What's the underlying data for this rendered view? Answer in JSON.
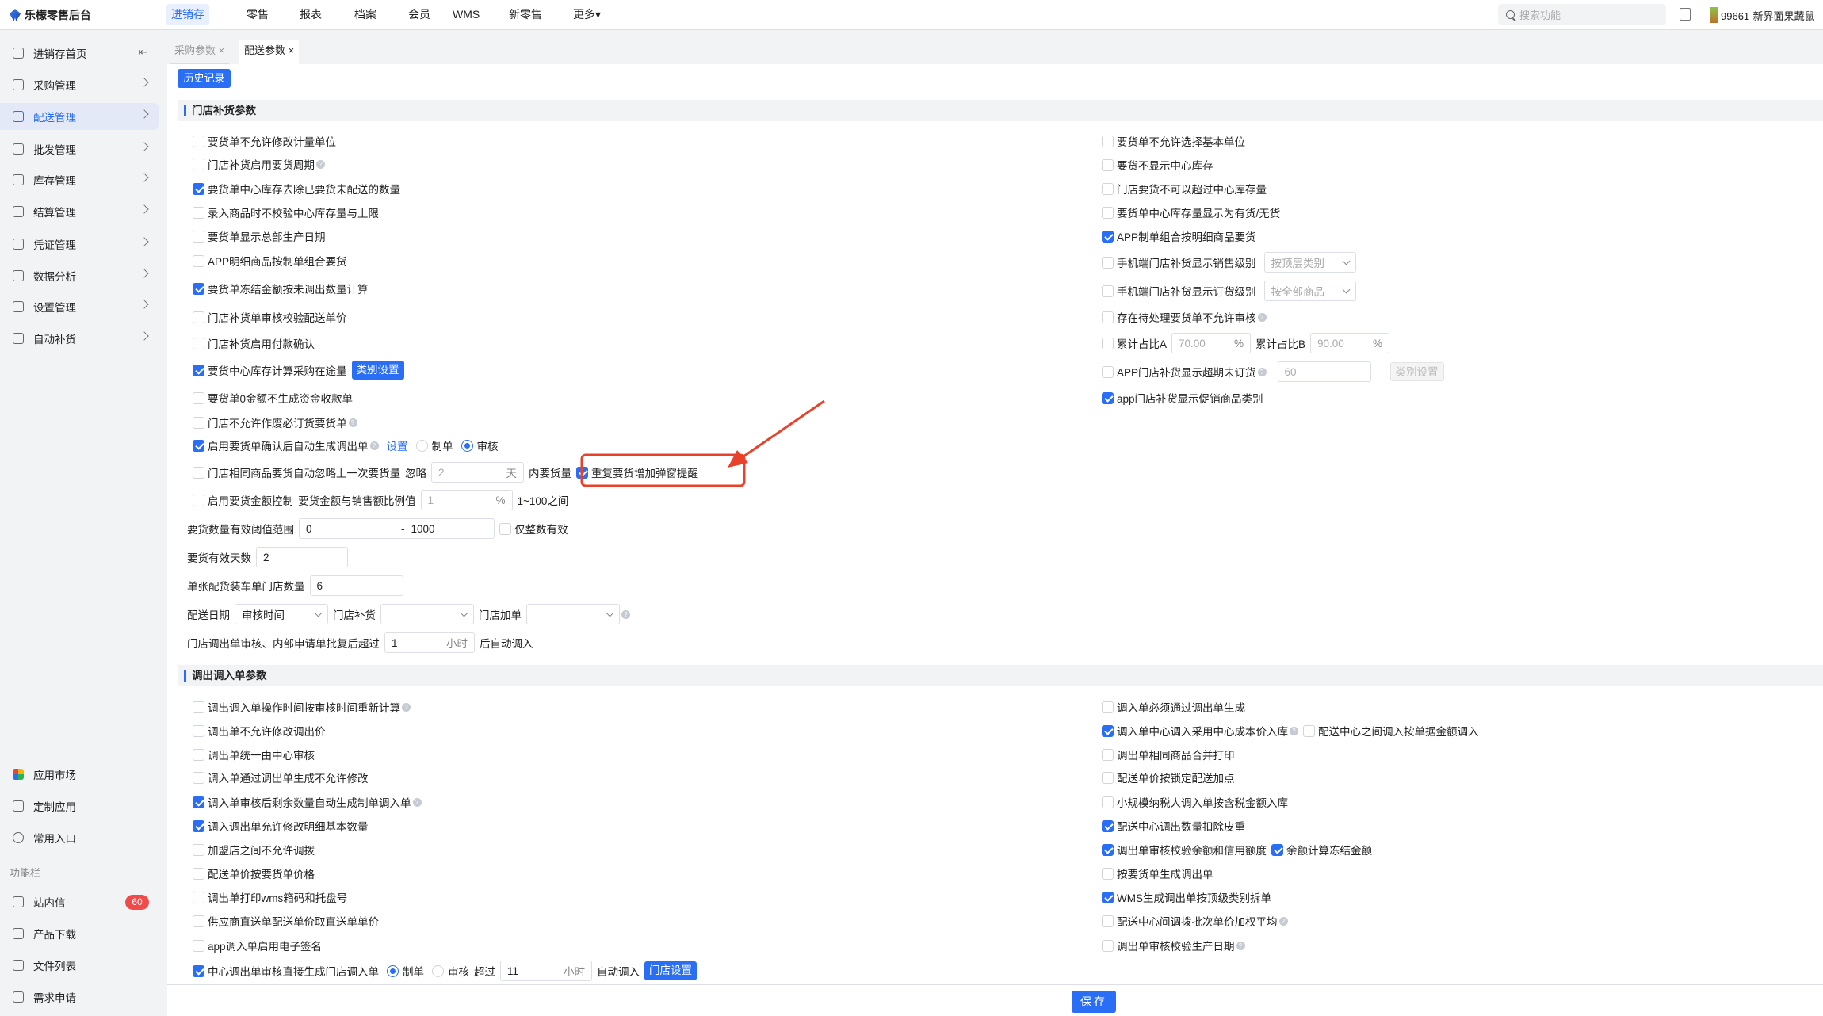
{
  "app": {
    "title": "乐檬零售后台"
  },
  "topnav": {
    "items": [
      "进销存",
      "零售",
      "报表",
      "档案",
      "会员",
      "WMS",
      "新零售",
      "更多▾"
    ],
    "search_placeholder": "搜索功能",
    "store_name": "99661-新界面果蔬鼠"
  },
  "sidebar": {
    "items": [
      {
        "label": "进销存首页",
        "icon": "home-icon"
      },
      {
        "label": "采购管理",
        "icon": "cart-icon"
      },
      {
        "label": "配送管理",
        "icon": "delivery-icon",
        "active": true
      },
      {
        "label": "批发管理",
        "icon": "wholesale-icon"
      },
      {
        "label": "库存管理",
        "icon": "inventory-icon"
      },
      {
        "label": "结算管理",
        "icon": "dollar-icon"
      },
      {
        "label": "凭证管理",
        "icon": "voucher-icon"
      },
      {
        "label": "数据分析",
        "icon": "chart-icon"
      },
      {
        "label": "设置管理",
        "icon": "settings-icon"
      },
      {
        "label": "自动补货",
        "icon": "auto-replenish-icon"
      }
    ],
    "bottom_items": [
      {
        "label": "应用市场",
        "icon": "app-market-icon"
      },
      {
        "label": "定制应用",
        "icon": "cube-icon"
      },
      {
        "label": "常用入口",
        "icon": "heart-icon"
      }
    ],
    "caption": "功能栏",
    "func_items": [
      {
        "label": "站内信",
        "icon": "mail-icon",
        "badge": "60"
      },
      {
        "label": "产品下载",
        "icon": "download-icon"
      },
      {
        "label": "文件列表",
        "icon": "file-list-icon"
      },
      {
        "label": "需求申请",
        "icon": "request-icon"
      }
    ]
  },
  "tabs": [
    {
      "label": "采购参数 ×",
      "active": false
    },
    {
      "label": "配送参数 ×",
      "active": true
    }
  ],
  "history_button": "历史记录",
  "save_button": "保存",
  "accent_color": "#2a6ef5",
  "annotation_color": "#e8412c",
  "section1": {
    "title": "门店补货参数",
    "left": [
      [
        {
          "t": "cb",
          "label": "要货单不允许修改计量单位",
          "checked": false
        }
      ],
      [
        {
          "t": "cb",
          "label": "门店补货启用要货周期",
          "checked": false
        },
        {
          "t": "help"
        }
      ],
      [
        {
          "t": "cb",
          "label": "要货单中心库存去除已要货未配送的数量",
          "checked": true
        }
      ],
      [
        {
          "t": "cb",
          "label": "录入商品时不校验中心库存量与上限",
          "checked": false
        }
      ],
      [
        {
          "t": "cb",
          "label": "要货单显示总部生产日期",
          "checked": false
        }
      ],
      [
        {
          "t": "cb",
          "label": "APP明细商品按制单组合要货",
          "checked": false
        }
      ],
      [
        {
          "t": "cb",
          "label": "要货单冻结金额按未调出数量计算",
          "checked": true
        }
      ],
      [
        {
          "t": "cb",
          "label": "门店补货单审核校验配送单价",
          "checked": false
        }
      ],
      [
        {
          "t": "cb",
          "label": "门店补货启用付款确认",
          "checked": false
        }
      ],
      [
        {
          "t": "cb",
          "label": "要货中心库存计算采购在途量",
          "checked": true
        },
        {
          "t": "btn",
          "label": "类别设置",
          "name": "category-settings-button"
        }
      ],
      [
        {
          "t": "cb",
          "label": "要货单0金额不生成资金收款单",
          "checked": false
        }
      ],
      [
        {
          "t": "cb",
          "label": "门店不允许作废必订货要货单",
          "checked": false
        },
        {
          "t": "help"
        }
      ],
      [
        {
          "t": "cb",
          "label": "启用要货单确认后自动生成调出单",
          "checked": true
        },
        {
          "t": "help"
        },
        {
          "t": "link",
          "label": "设置"
        },
        {
          "t": "radio",
          "label": "制单",
          "checked": false
        },
        {
          "t": "radio",
          "label": "审核",
          "checked": true
        }
      ],
      [
        {
          "t": "cb",
          "label": "门店相同商品要货自动忽略上一次要货量",
          "checked": false
        },
        {
          "t": "text",
          "text": "忽略"
        },
        {
          "t": "input",
          "value": "2",
          "unit": "天",
          "disabled": true,
          "name": "ignore-days-input"
        },
        {
          "t": "text",
          "text": "内要货量"
        },
        {
          "t": "cb",
          "label": "重复要货增加弹窗提醒",
          "checked": true,
          "highlighted": true
        }
      ],
      [
        {
          "t": "cb",
          "label": "启用要货金额控制",
          "checked": false
        },
        {
          "t": "text",
          "text": "要货金额与销售额比例值"
        },
        {
          "t": "input",
          "value": "1",
          "unit": "%",
          "disabled": true,
          "name": "amount-ratio-input"
        },
        {
          "t": "text",
          "text": "1~100之间"
        }
      ],
      [
        {
          "t": "text",
          "text": "要货数量有效阈值范围"
        },
        {
          "t": "range",
          "from": "0",
          "sep": "-",
          "to": "1000",
          "name": "range-input"
        },
        {
          "t": "cb",
          "label": "仅整数有效",
          "checked": false
        }
      ],
      [
        {
          "t": "text",
          "text": "要货有效天数"
        },
        {
          "t": "input",
          "value": "2",
          "name": "valid-days-input"
        }
      ],
      [
        {
          "t": "text",
          "text": "单张配货装车单门店数量"
        },
        {
          "t": "input",
          "value": "6",
          "name": "truck-store-count-input"
        }
      ],
      [
        {
          "t": "text",
          "text": "配送日期"
        },
        {
          "t": "select",
          "value": "审核时间",
          "name": "delivery-date-select"
        },
        {
          "t": "text",
          "text": "门店补货"
        },
        {
          "t": "select",
          "value": "",
          "name": "store-replenish-select"
        },
        {
          "t": "text",
          "text": "门店加单"
        },
        {
          "t": "select",
          "value": "",
          "name": "store-add-order-select"
        },
        {
          "t": "help"
        }
      ],
      [
        {
          "t": "text",
          "text": "门店调出单审核、内部申请单批复后超过"
        },
        {
          "t": "input",
          "value": "1",
          "unit": "小时",
          "name": "auto-in-hours-input"
        },
        {
          "t": "text",
          "text": "后自动调入"
        }
      ]
    ],
    "right": [
      [
        {
          "t": "cb",
          "label": "要货单不允许选择基本单位",
          "checked": false
        }
      ],
      [
        {
          "t": "cb",
          "label": "要货不显示中心库存",
          "checked": false
        }
      ],
      [
        {
          "t": "cb",
          "label": "门店要货不可以超过中心库存量",
          "checked": false
        }
      ],
      [
        {
          "t": "cb",
          "label": "要货单中心库存量显示为有货/无货",
          "checked": false
        }
      ],
      [
        {
          "t": "cb",
          "label": "APP制单组合按明细商品要货",
          "checked": true
        }
      ],
      [
        {
          "t": "cb",
          "label": "手机端门店补货显示销售级别",
          "checked": false
        },
        {
          "t": "select",
          "value": "按顶层类别",
          "disabled": true,
          "name": "sales-level-select"
        }
      ],
      [
        {
          "t": "cb",
          "label": "手机端门店补货显示订货级别",
          "checked": false
        },
        {
          "t": "select",
          "value": "按全部商品",
          "disabled": true,
          "name": "order-level-select"
        }
      ],
      [
        {
          "t": "cb",
          "label": "存在待处理要货单不允许审核",
          "checked": false
        },
        {
          "t": "help"
        }
      ],
      [
        {
          "t": "cb",
          "label": "累计占比A",
          "checked": false
        },
        {
          "t": "input",
          "value": "70.00",
          "unit": "%",
          "disabled": true,
          "name": "ratio-a-input"
        },
        {
          "t": "text",
          "text": "累计占比B"
        },
        {
          "t": "input",
          "value": "90.00",
          "unit": "%",
          "disabled": true,
          "name": "ratio-b-input"
        }
      ],
      [
        {
          "t": "cb",
          "label": "APP门店补货显示超期未订货",
          "checked": false
        },
        {
          "t": "help"
        },
        {
          "t": "input",
          "value": "60",
          "disabled": true,
          "name": "overdue-days-input"
        },
        {
          "t": "btn",
          "label": "类别设置",
          "disabled": true,
          "name": "category-settings-button-disabled"
        }
      ],
      [
        {
          "t": "cb",
          "label": "app门店补货显示促销商品类别",
          "checked": true
        }
      ]
    ]
  },
  "section2": {
    "title": "调出调入单参数",
    "left": [
      [
        {
          "t": "cb",
          "label": "调出调入单操作时间按审核时间重新计算",
          "checked": false
        },
        {
          "t": "help"
        }
      ],
      [
        {
          "t": "cb",
          "label": "调出单不允许修改调出价",
          "checked": false
        }
      ],
      [
        {
          "t": "cb",
          "label": "调出单统一由中心审核",
          "checked": false
        }
      ],
      [
        {
          "t": "cb",
          "label": "调入单通过调出单生成不允许修改",
          "checked": false
        }
      ],
      [
        {
          "t": "cb",
          "label": "调入单审核后剩余数量自动生成制单调入单",
          "checked": true
        },
        {
          "t": "help"
        }
      ],
      [
        {
          "t": "cb",
          "label": "调入调出单允许修改明细基本数量",
          "checked": true
        }
      ],
      [
        {
          "t": "cb",
          "label": "加盟店之间不允许调拨",
          "checked": false
        }
      ],
      [
        {
          "t": "cb",
          "label": "配送单价按要货单价格",
          "checked": false
        }
      ],
      [
        {
          "t": "cb",
          "label": "调出单打印wms箱码和托盘号",
          "checked": false
        }
      ],
      [
        {
          "t": "cb",
          "label": "供应商直送单配送单价取直送单单价",
          "checked": false
        }
      ],
      [
        {
          "t": "cb",
          "label": "app调入单启用电子签名",
          "checked": false
        }
      ],
      [
        {
          "t": "cb",
          "label": "中心调出单审核直接生成门店调入单",
          "checked": true
        },
        {
          "t": "radio",
          "label": "制单",
          "checked": true
        },
        {
          "t": "radio",
          "label": "审核",
          "checked": false
        },
        {
          "t": "text",
          "text": "超过"
        },
        {
          "t": "input",
          "value": "11",
          "unit": "小时",
          "name": "center-auto-in-hours-input"
        },
        {
          "t": "text",
          "text": "自动调入"
        },
        {
          "t": "btn",
          "label": "门店设置",
          "name": "store-settings-button"
        }
      ]
    ],
    "right": [
      [
        {
          "t": "cb",
          "label": "调入单必须通过调出单生成",
          "checked": false
        }
      ],
      [
        {
          "t": "cb",
          "label": "调入单中心调入采用中心成本价入库",
          "checked": true
        },
        {
          "t": "help"
        },
        {
          "t": "cb",
          "label": "配送中心之间调入按单据金额调入",
          "checked": false
        }
      ],
      [
        {
          "t": "cb",
          "label": "调出单相同商品合并打印",
          "checked": false
        }
      ],
      [
        {
          "t": "cb",
          "label": "配送单价按锁定配送加点",
          "checked": false
        }
      ],
      [
        {
          "t": "cb",
          "label": "小规模纳税人调入单按含税金额入库",
          "checked": false
        }
      ],
      [
        {
          "t": "cb",
          "label": "配送中心调出数量扣除皮重",
          "checked": true
        }
      ],
      [
        {
          "t": "cb",
          "label": "调出单审核校验余额和信用额度",
          "checked": true
        },
        {
          "t": "cb",
          "label": "余额计算冻结金额",
          "checked": true
        }
      ],
      [
        {
          "t": "cb",
          "label": "按要货单生成调出单",
          "checked": false
        }
      ],
      [
        {
          "t": "cb",
          "label": "WMS生成调出单按顶级类别拆单",
          "checked": true
        }
      ],
      [
        {
          "t": "cb",
          "label": "配送中心间调拨批次单价加权平均",
          "checked": false
        },
        {
          "t": "help"
        }
      ],
      [
        {
          "t": "cb",
          "label": "调出单审核校验生产日期",
          "checked": false
        },
        {
          "t": "help"
        }
      ]
    ]
  }
}
